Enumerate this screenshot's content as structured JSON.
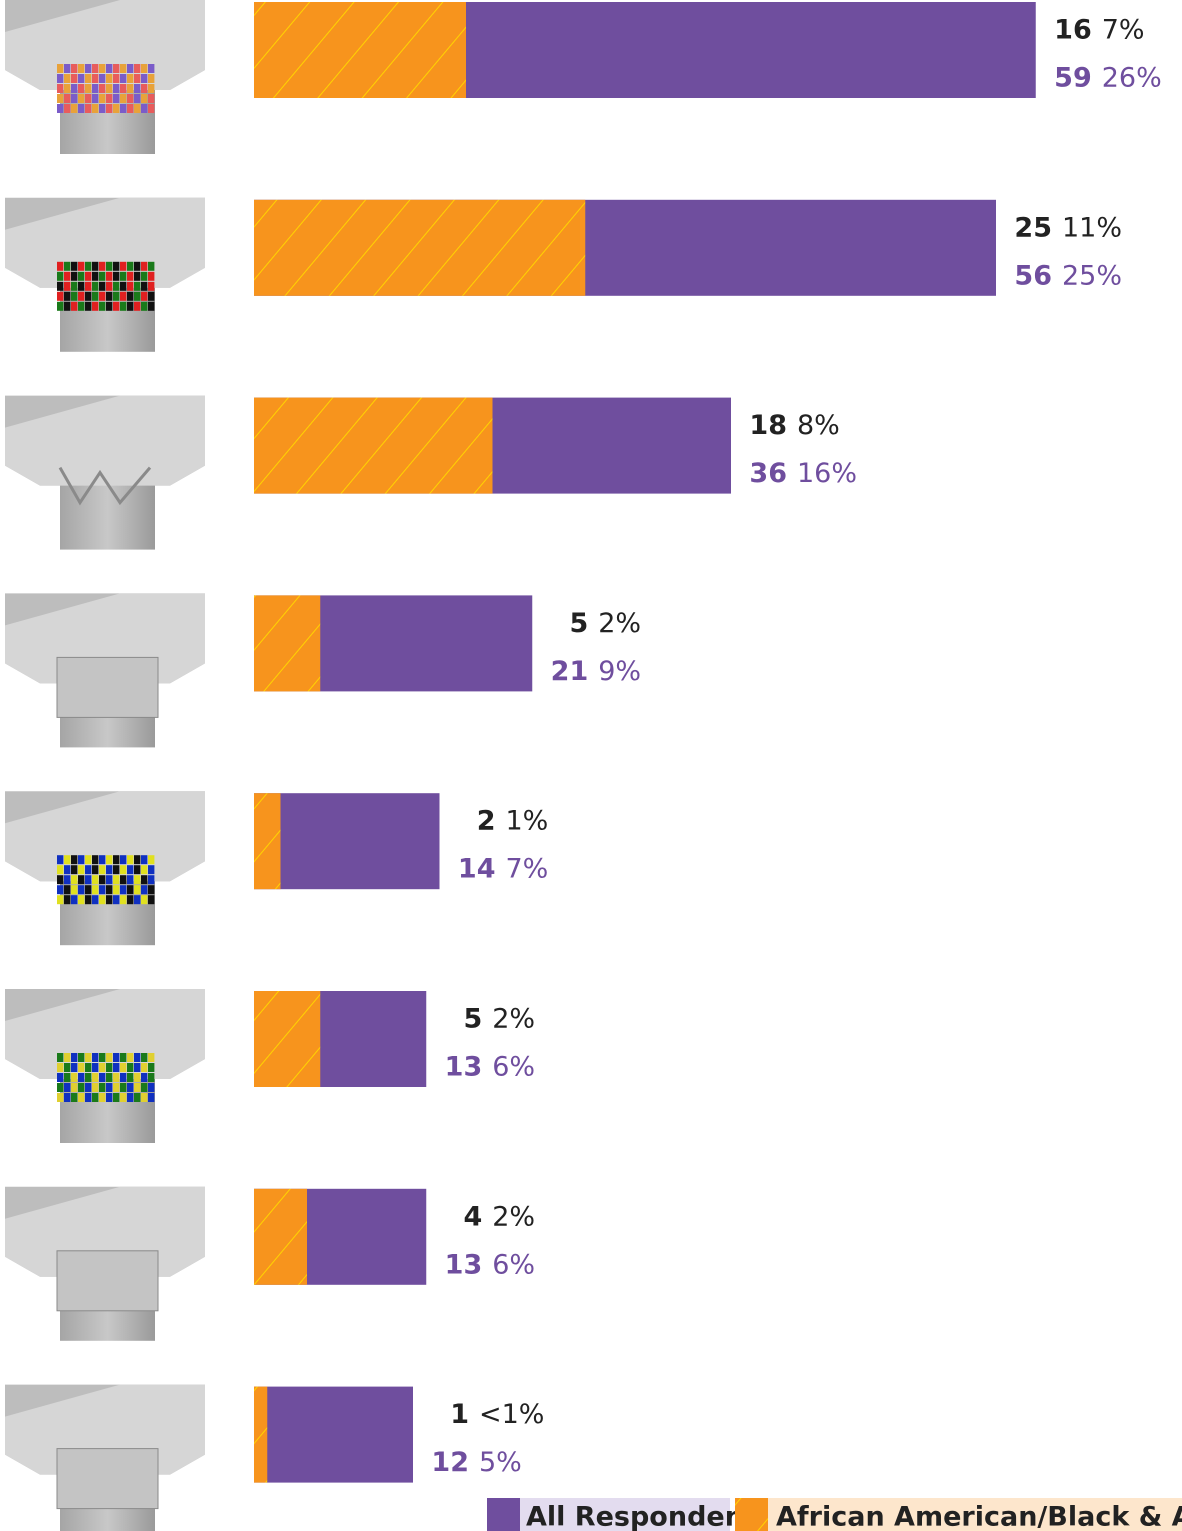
{
  "chart_data": {
    "type": "hbar_overlap",
    "categories": [
      null,
      null,
      null,
      null,
      null,
      null,
      null,
      null
    ],
    "series": [
      {
        "name": "All Respondents*",
        "color": "#6f4e9e",
        "values": [
          59,
          56,
          36,
          21,
          14,
          13,
          13,
          12
        ],
        "share_labels": [
          "26%",
          "25%",
          "16%",
          "9%",
          "7%",
          "6%",
          "6%",
          "5%"
        ]
      },
      {
        "name": "African American/Black & African",
        "color": "#f7941d",
        "values": [
          16,
          25,
          18,
          5,
          2,
          5,
          4,
          1
        ],
        "share_labels": [
          "7%",
          "11%",
          "8%",
          "2%",
          "1%",
          "2%",
          "2%",
          "<1%"
        ]
      }
    ]
  }
}
